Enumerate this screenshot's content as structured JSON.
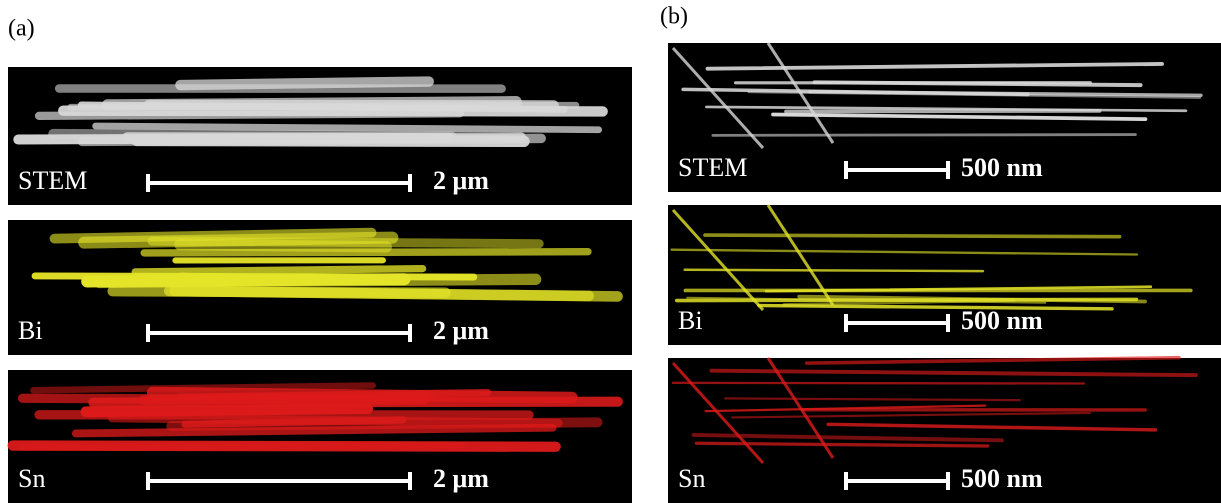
{
  "panels": [
    {
      "label": "(a)",
      "images": [
        {
          "element": "STEM",
          "scale": "2 μm"
        },
        {
          "element": "Bi",
          "scale": "2 μm"
        },
        {
          "element": "Sn",
          "scale": "2 μm"
        }
      ]
    },
    {
      "label": "(b)",
      "images": [
        {
          "element": "STEM",
          "scale": "500 nm"
        },
        {
          "element": "Bi",
          "scale": "500 nm"
        },
        {
          "element": "Sn",
          "scale": "500 nm"
        }
      ]
    }
  ]
}
